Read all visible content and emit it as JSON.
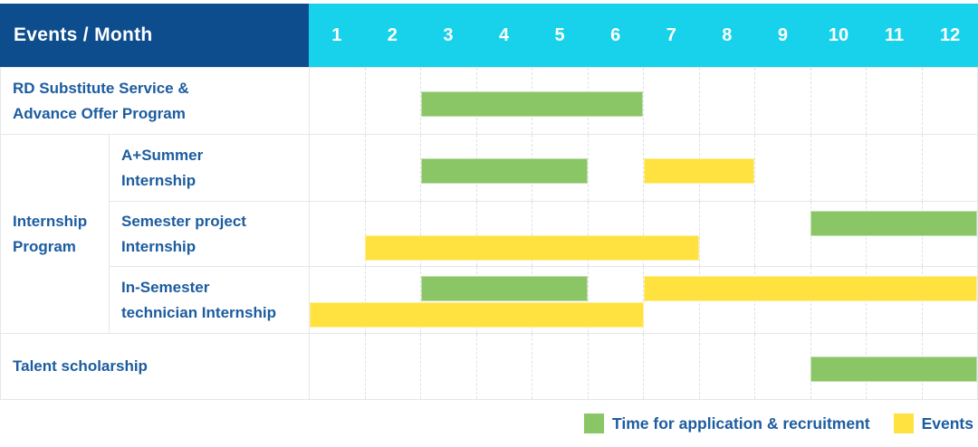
{
  "header": {
    "title": "Events / Month"
  },
  "colors": {
    "header_navy": "#0E4D8D",
    "header_cyan": "#17D2EA",
    "bar_green": "#8AC566",
    "bar_yellow": "#FFE23F",
    "label_blue": "#1C5CA0"
  },
  "chart_data": {
    "type": "gantt",
    "x_axis_label": "Month",
    "months": [
      "1",
      "2",
      "3",
      "4",
      "5",
      "6",
      "7",
      "8",
      "9",
      "10",
      "11",
      "12"
    ],
    "legend": [
      {
        "key": "recruitment",
        "label": "Time for application & recruitment",
        "color": "#8AC566"
      },
      {
        "key": "event",
        "label": "Events",
        "color": "#FFE23F"
      }
    ],
    "rows": [
      {
        "label": "RD Substitute Service &\nAdvance Offer Program",
        "group": "",
        "bars": [
          {
            "series": "recruitment",
            "start_month": 3,
            "end_month": 6,
            "lane": "center"
          }
        ]
      },
      {
        "label": "A+Summer\nInternship",
        "group": "Internship\nProgram",
        "bars": [
          {
            "series": "recruitment",
            "start_month": 3,
            "end_month": 5,
            "lane": "center"
          },
          {
            "series": "event",
            "start_month": 7,
            "end_month": 8,
            "lane": "center"
          }
        ]
      },
      {
        "label": "Semester project\nInternship",
        "group": "Internship\nProgram",
        "bars": [
          {
            "series": "recruitment",
            "start_month": 10,
            "end_month": 12,
            "lane": "top"
          },
          {
            "series": "event",
            "start_month": 2,
            "end_month": 7,
            "lane": "bottom"
          }
        ]
      },
      {
        "label": "In-Semester\ntechnician Internship",
        "group": "Internship\nProgram",
        "bars": [
          {
            "series": "recruitment",
            "start_month": 3,
            "end_month": 5,
            "lane": "top"
          },
          {
            "series": "event",
            "start_month": 7,
            "end_month": 12,
            "lane": "top"
          },
          {
            "series": "event",
            "start_month": 1,
            "end_month": 6,
            "lane": "bottom"
          }
        ]
      },
      {
        "label": "Talent scholarship",
        "group": "",
        "bars": [
          {
            "series": "recruitment",
            "start_month": 10,
            "end_month": 12,
            "lane": "center"
          }
        ]
      }
    ]
  }
}
